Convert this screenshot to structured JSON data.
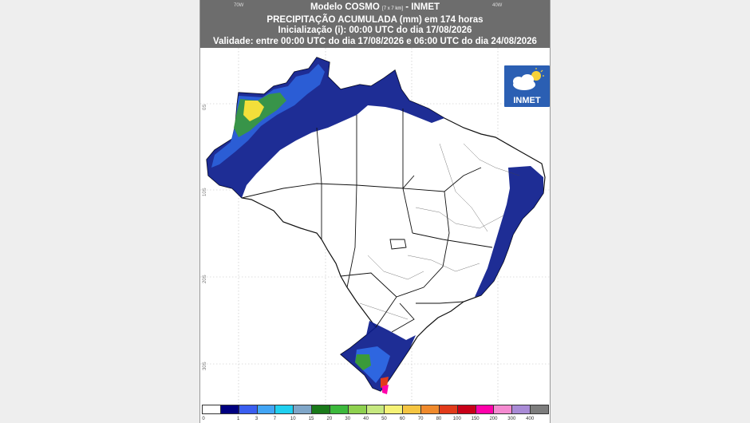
{
  "header": {
    "line1_main": "Modelo COSMO",
    "line1_small": "[7 x 7 km]",
    "line1_tail": "- INMET",
    "line2": "PRECIPITAÇÃO ACUMULADA (mm) em 174 horas",
    "line3": "Inicialização (i): 00:00 UTC do dia 17/08/2026",
    "line4": "Validade: entre 00:00 UTC do dia 17/08/2026 e 06:00 UTC do dia 24/08/2026",
    "lon_labels": [
      "70W",
      "40W"
    ]
  },
  "lat_labels": [
    "0S",
    "10S",
    "20S",
    "30S"
  ],
  "logo": {
    "text": "INMET",
    "icon": "cloud-sun-icon"
  },
  "colorbar": {
    "labels": [
      "0",
      "1",
      "3",
      "7",
      "10",
      "15",
      "20",
      "30",
      "40",
      "50",
      "60",
      "70",
      "80",
      "100",
      "150",
      "200",
      "300",
      "400"
    ],
    "colors": [
      "#ffffff",
      "#000080",
      "#3a5ef0",
      "#42a5f5",
      "#20d0f0",
      "#7fa6c8",
      "#1a7a1a",
      "#3cb93c",
      "#8ed14f",
      "#c6e880",
      "#f5f276",
      "#f5c542",
      "#f08a2c",
      "#e23b1a",
      "#c80018",
      "#ff00aa",
      "#f48ad0",
      "#a98bd6",
      "#7d7d7d"
    ]
  },
  "colors": {
    "rain_dark": "#0b1b8c",
    "rain_blue": "#2e66e0",
    "rain_light": "#6aa8e8",
    "rain_green": "#3a9a3a",
    "rain_yellow": "#f3df3a",
    "border": "#111111"
  }
}
